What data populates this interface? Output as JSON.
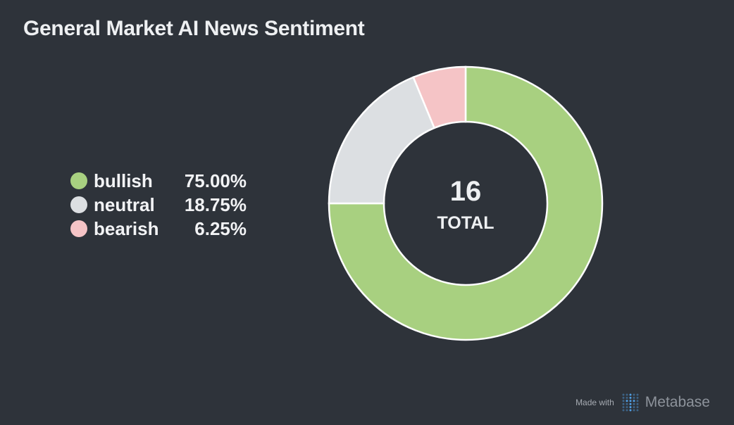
{
  "title": "General Market AI News Sentiment",
  "chart_data": {
    "type": "pie",
    "variant": "donut",
    "categories": [
      "bullish",
      "neutral",
      "bearish"
    ],
    "values": [
      12,
      3,
      1
    ],
    "percent_labels": [
      "75.00%",
      "18.75%",
      "6.25%"
    ],
    "colors": [
      "#a8d080",
      "#dcdfe2",
      "#f5c4c6"
    ],
    "center_value": "16",
    "center_label": "TOTAL",
    "legend_position": "left"
  },
  "footer": {
    "made_with": "Made with",
    "brand": "Metabase",
    "logo_icon": "metabase-logo-icon",
    "logo_color": "#509ee3"
  }
}
